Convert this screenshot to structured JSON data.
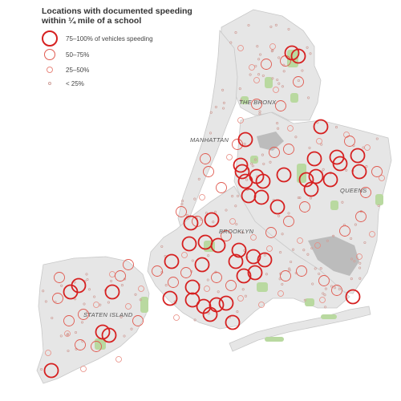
{
  "legend": {
    "title_line1": "Locations with documented speeding",
    "title_line2": "within ¼ mile of a school",
    "items": [
      {
        "label": "75–100% of vehicles speeding",
        "level": 4
      },
      {
        "label": "50–75%",
        "level": 3
      },
      {
        "label": "25–50%",
        "level": 2
      },
      {
        "label": "< 25%",
        "level": 1
      }
    ]
  },
  "labels": {
    "bronx": "THE BRONX",
    "manhattan": "MANHATTAN",
    "queens": "QUEENS",
    "brooklyn": "BROOKLYN",
    "staten_island": "STATEN ISLAND"
  },
  "colors": {
    "land": "#e6e6e6",
    "land_stroke": "#c8c8c8",
    "park": "#b9d9a0",
    "airport": "#bcbcbc",
    "marker_high": "#d62020",
    "marker_mid": "#e05a50",
    "marker_low": "#e88a80",
    "marker_min": "#d0a09a"
  }
}
